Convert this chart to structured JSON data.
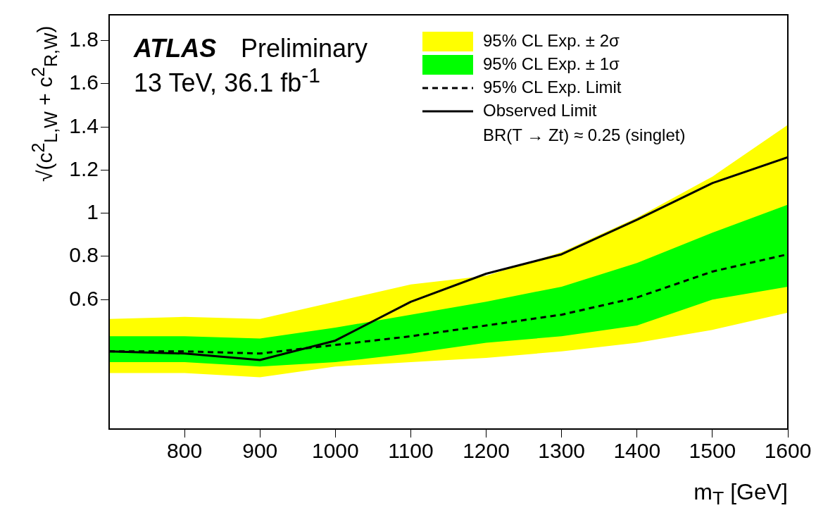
{
  "chart_data": {
    "type": "line",
    "xlabel": "m$_{T}$ [GeV]",
    "ylabel": "√(c$^{2}$$_{L,W}$ + c$^{2}$$_{R,W}$)",
    "x": [
      700,
      800,
      900,
      1000,
      1100,
      1200,
      1300,
      1400,
      1500,
      1600
    ],
    "xlim": [
      700,
      1600
    ],
    "xticks": [
      800,
      900,
      1000,
      1100,
      1200,
      1300,
      1400,
      1500,
      1600
    ],
    "ylim": [
      0,
      1.92
    ],
    "yticks": [
      0.6,
      0.8,
      1,
      1.2,
      1.4,
      1.6,
      1.8
    ],
    "grid": false,
    "legend": "top right",
    "marker": "none",
    "annotations": [
      "ATLAS",
      "Preliminary",
      "13 TeV, 36.1 fb$^{-1}$",
      "BR(T → Zt) ≈ 0.25 (singlet)"
    ],
    "series": [
      {
        "name": "95% CL Exp. ± 2σ",
        "color": "#ffff00",
        "values": [
          null,
          null,
          null,
          null,
          null,
          null,
          null,
          null,
          null,
          null
        ],
        "lower": [
          0.26,
          0.26,
          0.24,
          0.29,
          0.31,
          0.33,
          0.36,
          0.4,
          0.46,
          0.54
        ],
        "upper": [
          0.51,
          0.52,
          0.51,
          0.59,
          0.67,
          0.71,
          0.82,
          0.98,
          1.17,
          1.41
        ]
      },
      {
        "name": "95% CL Exp. ± 1σ",
        "color": "#00ff00",
        "values": [
          null,
          null,
          null,
          null,
          null,
          null,
          null,
          null,
          null,
          null
        ],
        "lower": [
          0.31,
          0.31,
          0.29,
          0.31,
          0.35,
          0.4,
          0.43,
          0.48,
          0.6,
          0.66
        ],
        "upper": [
          0.43,
          0.43,
          0.42,
          0.47,
          0.53,
          0.59,
          0.66,
          0.77,
          0.91,
          1.04
        ]
      },
      {
        "name": "95% CL Exp. Limit",
        "line_style": "dashed",
        "color": "#000000",
        "values": [
          0.36,
          0.36,
          0.35,
          0.39,
          0.43,
          0.48,
          0.53,
          0.61,
          0.73,
          0.81
        ]
      },
      {
        "name": "Observed Limit",
        "line_style": "solid",
        "color": "#000000",
        "values": [
          0.36,
          0.35,
          0.32,
          0.41,
          0.59,
          0.72,
          0.81,
          0.97,
          1.14,
          1.26
        ]
      }
    ]
  }
}
